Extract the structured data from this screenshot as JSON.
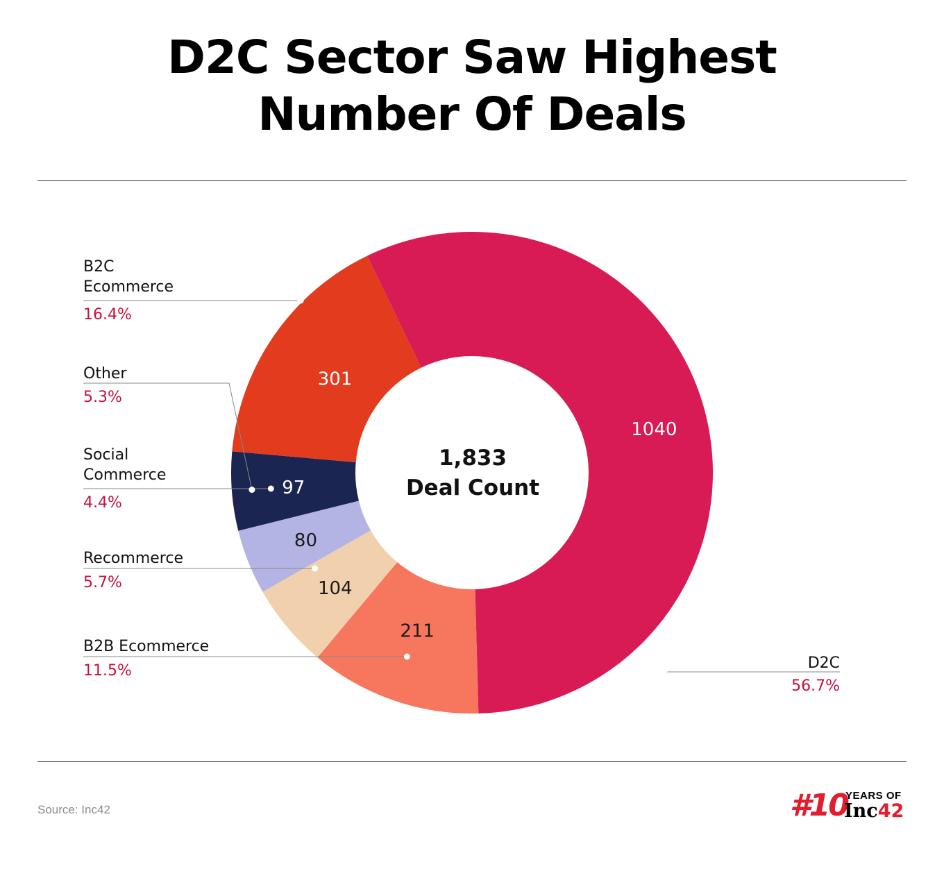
{
  "title_line1": "D2C Sector Saw Highest",
  "title_line2": "Number Of Deals",
  "source": "Source: Inc42",
  "logo": {
    "hash_text": "#10",
    "years_text": "YEARS OF",
    "brand_text": "Inc",
    "brand_num": "42"
  },
  "chart_data": {
    "type": "pie",
    "donut": true,
    "center_value": "1,833",
    "center_label": "Deal Count",
    "slices": [
      {
        "label": "D2C",
        "value": 1040,
        "value_label": "1040",
        "percent": "56.7%",
        "color": "#d81b55",
        "value_color": "#ffffff"
      },
      {
        "label": "B2B Ecommerce",
        "value": 211,
        "value_label": "211",
        "percent": "11.5%",
        "color": "#f7765e",
        "value_color": "#1a1a1a"
      },
      {
        "label": "Recommerce",
        "value": 104,
        "value_label": "104",
        "percent": "5.7%",
        "color": "#f1d1ad",
        "value_color": "#1a1a1a"
      },
      {
        "label": "Social Commerce",
        "value": 80,
        "value_label": "80",
        "percent": "4.4%",
        "color": "#b4b4e4",
        "value_color": "#1a1a1a"
      },
      {
        "label": "Other",
        "value": 97,
        "value_label": "97",
        "percent": "5.3%",
        "color": "#1b2552",
        "value_color": "#ffffff"
      },
      {
        "label": "B2C Ecommerce",
        "value": 301,
        "value_label": "301",
        "percent": "16.4%",
        "color": "#e23b1e",
        "value_color": "#ffffff"
      }
    ],
    "percent_color": "#c8103e",
    "legend_placement": "callouts"
  }
}
